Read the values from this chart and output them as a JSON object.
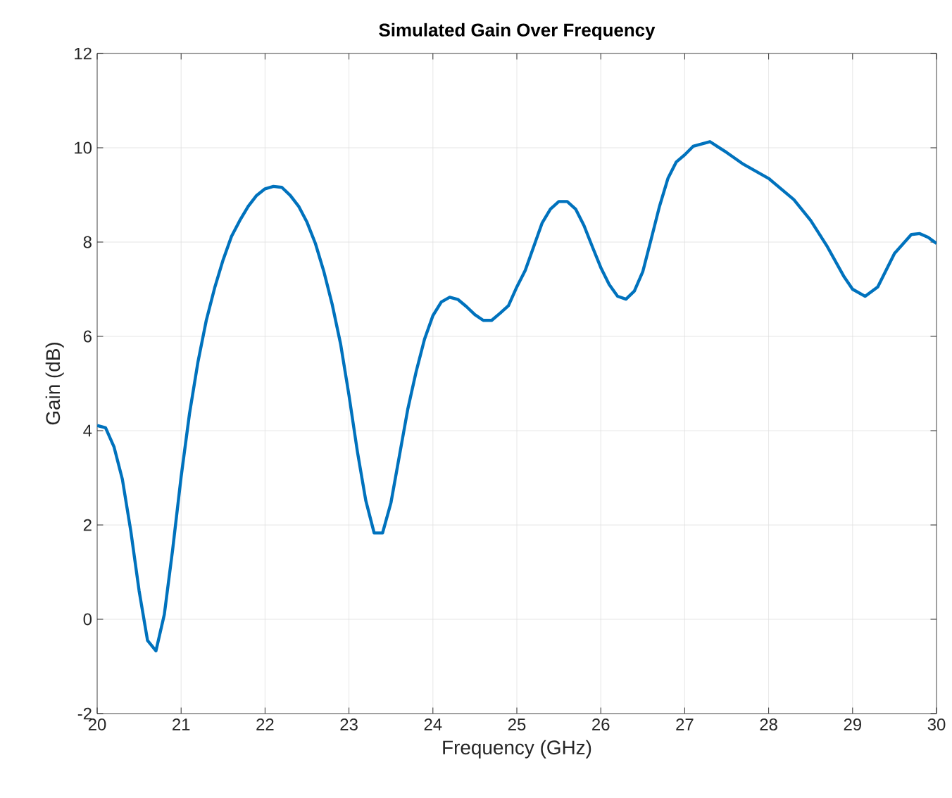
{
  "chart_data": {
    "type": "line",
    "title": "Simulated Gain Over Frequency",
    "xlabel": "Frequency (GHz)",
    "ylabel": "Gain (dB)",
    "xlim": [
      20,
      30
    ],
    "ylim": [
      -2,
      12
    ],
    "xticks": [
      20,
      21,
      22,
      23,
      24,
      25,
      26,
      27,
      28,
      29,
      30
    ],
    "yticks": [
      -2,
      0,
      2,
      4,
      6,
      8,
      10,
      12
    ],
    "grid": true,
    "marker": "none",
    "line_style": "solid",
    "x": [
      20.0,
      20.1,
      20.2,
      20.3,
      20.4,
      20.5,
      20.6,
      20.7,
      20.8,
      20.9,
      21.0,
      21.1,
      21.2,
      21.3,
      21.4,
      21.5,
      21.6,
      21.7,
      21.8,
      21.9,
      22.0,
      22.1,
      22.2,
      22.3,
      22.4,
      22.5,
      22.6,
      22.7,
      22.8,
      22.9,
      23.0,
      23.1,
      23.2,
      23.3,
      23.4,
      23.5,
      23.6,
      23.7,
      23.8,
      23.9,
      24.0,
      24.1,
      24.2,
      24.3,
      24.4,
      24.5,
      24.6,
      24.7,
      24.8,
      24.9,
      25.0,
      25.1,
      25.2,
      25.3,
      25.4,
      25.5,
      25.6,
      25.7,
      25.8,
      25.9,
      26.0,
      26.1,
      26.2,
      26.3,
      26.4,
      26.5,
      26.6,
      26.7,
      26.8,
      26.9,
      27.0,
      27.1,
      27.3,
      27.5,
      27.7,
      28.0,
      28.3,
      28.5,
      28.7,
      28.9,
      29.0,
      29.15,
      29.3,
      29.5,
      29.7,
      29.8,
      29.9,
      30.0
    ],
    "series": [
      {
        "color": "#0072bd",
        "values": [
          4.11,
          4.06,
          3.66,
          2.97,
          1.88,
          0.6,
          -0.45,
          -0.67,
          0.1,
          1.49,
          3.02,
          4.36,
          5.45,
          6.34,
          7.03,
          7.62,
          8.12,
          8.46,
          8.76,
          8.99,
          9.13,
          9.18,
          9.16,
          8.99,
          8.76,
          8.42,
          7.97,
          7.38,
          6.68,
          5.84,
          4.75,
          3.56,
          2.52,
          1.83,
          1.83,
          2.47,
          3.46,
          4.45,
          5.25,
          5.94,
          6.44,
          6.73,
          6.83,
          6.78,
          6.63,
          6.46,
          6.34,
          6.34,
          6.49,
          6.65,
          7.05,
          7.4,
          7.9,
          8.4,
          8.7,
          8.86,
          8.86,
          8.7,
          8.35,
          7.9,
          7.46,
          7.1,
          6.85,
          6.79,
          6.96,
          7.37,
          8.06,
          8.76,
          9.35,
          9.7,
          9.85,
          10.03,
          10.13,
          9.9,
          9.65,
          9.35,
          8.9,
          8.46,
          7.9,
          7.26,
          7.0,
          6.85,
          7.05,
          7.76,
          8.16,
          8.18,
          8.1,
          7.97
        ]
      }
    ]
  }
}
